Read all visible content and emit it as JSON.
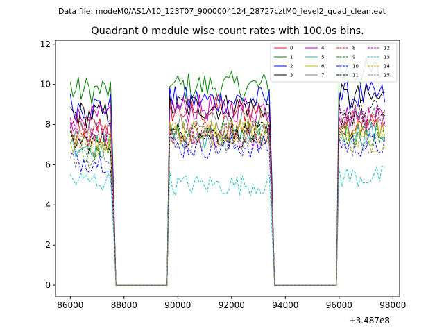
{
  "chart_data": {
    "type": "line",
    "suptitle": "Data file: modeM0/AS1A10_123T07_9000004124_28727cztM0_level2_quad_clean.evt",
    "title": "Quadrant 0 module wise count rates with 100.0s bins.",
    "xlabel": "",
    "ylabel": "",
    "x_offset_label": "+3.487e8",
    "xlim": [
      85450,
      98250
    ],
    "ylim": [
      -0.55,
      12.2
    ],
    "x_ticks": [
      86000,
      88000,
      90000,
      92000,
      94000,
      96000,
      98000
    ],
    "x_tick_labels": [
      "86000",
      "88000",
      "90000",
      "92000",
      "94000",
      "96000",
      "98000"
    ],
    "y_ticks": [
      0,
      2,
      4,
      6,
      8,
      10,
      12
    ],
    "y_tick_labels": [
      "0",
      "2",
      "4",
      "6",
      "8",
      "10",
      "12"
    ],
    "legend_position": "upper-right",
    "orbit_segments": [
      {
        "start": 86000,
        "end": 87600,
        "gap_start": 87700,
        "gap_end": 89600
      },
      {
        "start": 89700,
        "end": 93500,
        "gap_start": 93600,
        "gap_end": 95900
      },
      {
        "start": 96000,
        "end": 97700,
        "gap_start": null,
        "gap_end": null
      }
    ],
    "series": [
      {
        "name": "0",
        "color": "#e41a1c",
        "dash": false,
        "levels": [
          7.9,
          8.7,
          8.0
        ]
      },
      {
        "name": "1",
        "color": "#008000",
        "dash": false,
        "levels": [
          9.7,
          9.9,
          10.6
        ]
      },
      {
        "name": "2",
        "color": "#0000ff",
        "dash": false,
        "levels": [
          8.9,
          9.2,
          9.4
        ]
      },
      {
        "name": "3",
        "color": "#000000",
        "dash": false,
        "levels": [
          8.5,
          8.9,
          9.3
        ]
      },
      {
        "name": "4",
        "color": "#c000c0",
        "dash": false,
        "levels": [
          8.3,
          8.8,
          8.4
        ]
      },
      {
        "name": "5",
        "color": "#1fbf9f",
        "dash": false,
        "levels": [
          7.0,
          7.4,
          7.6
        ]
      },
      {
        "name": "6",
        "color": "#c8b400",
        "dash": false,
        "levels": [
          7.2,
          7.6,
          7.8
        ]
      },
      {
        "name": "7",
        "color": "#808080",
        "dash": false,
        "levels": [
          7.6,
          8.0,
          8.2
        ]
      },
      {
        "name": "8",
        "color": "#e41a1c",
        "dash": true,
        "levels": [
          7.4,
          7.6,
          8.1
        ]
      },
      {
        "name": "9",
        "color": "#008000",
        "dash": true,
        "levels": [
          6.8,
          7.7,
          7.5
        ]
      },
      {
        "name": "10",
        "color": "#0000ff",
        "dash": true,
        "levels": [
          6.2,
          6.9,
          7.0
        ]
      },
      {
        "name": "11",
        "color": "#000000",
        "dash": true,
        "levels": [
          7.1,
          7.5,
          8.6
        ]
      },
      {
        "name": "12",
        "color": "#c000c0",
        "dash": true,
        "levels": [
          7.5,
          7.4,
          8.3
        ]
      },
      {
        "name": "13",
        "color": "#1fbfbf",
        "dash": true,
        "levels": [
          5.2,
          5.0,
          5.4
        ]
      },
      {
        "name": "14",
        "color": "#c8b400",
        "dash": true,
        "levels": [
          6.9,
          7.6,
          7.2
        ]
      },
      {
        "name": "15",
        "color": "#808080",
        "dash": true,
        "levels": [
          6.4,
          7.2,
          7.0
        ]
      }
    ]
  }
}
